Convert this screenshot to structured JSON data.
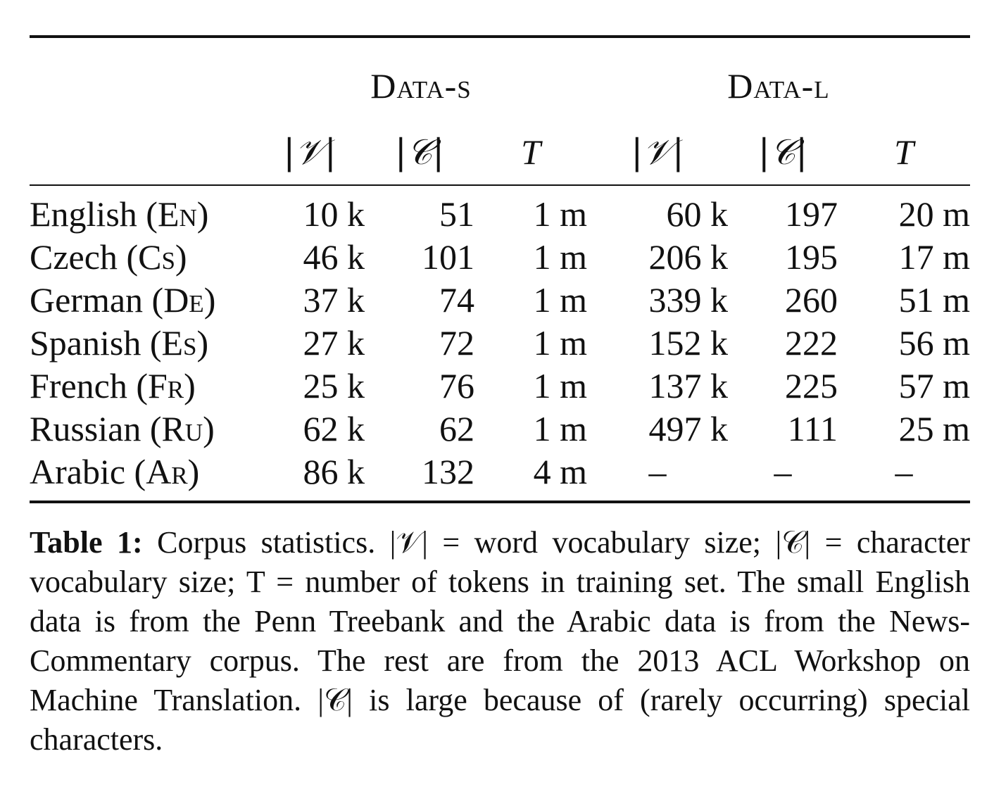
{
  "table": {
    "groups": [
      "Data-s",
      "Data-l"
    ],
    "symbols": [
      "|𝒱|",
      "|𝒞|",
      "T",
      "|𝒱|",
      "|𝒞|",
      "T"
    ],
    "rows": [
      {
        "lang": "English",
        "code": "En",
        "cells": [
          "10 k",
          "51",
          "1 m",
          "60 k",
          "197",
          "20 m"
        ]
      },
      {
        "lang": "Czech",
        "code": "Cs",
        "cells": [
          "46 k",
          "101",
          "1 m",
          "206 k",
          "195",
          "17 m"
        ]
      },
      {
        "lang": "German",
        "code": "De",
        "cells": [
          "37 k",
          "74",
          "1 m",
          "339 k",
          "260",
          "51 m"
        ]
      },
      {
        "lang": "Spanish",
        "code": "Es",
        "cells": [
          "27 k",
          "72",
          "1 m",
          "152 k",
          "222",
          "56 m"
        ]
      },
      {
        "lang": "French",
        "code": "Fr",
        "cells": [
          "25 k",
          "76",
          "1 m",
          "137 k",
          "225",
          "57 m"
        ]
      },
      {
        "lang": "Russian",
        "code": "Ru",
        "cells": [
          "62 k",
          "62",
          "1 m",
          "497 k",
          "111",
          "25 m"
        ]
      },
      {
        "lang": "Arabic",
        "code": "Ar",
        "cells": [
          "86 k",
          "132",
          "4 m",
          "–",
          "–",
          "–"
        ]
      }
    ]
  },
  "caption": {
    "label": "Table 1:",
    "text": "Corpus statistics. |𝒱| = word vocabulary size; |𝒞| = character vocabulary size; T = number of tokens in training set. The small English data is from the Penn Treebank and the Arabic data is from the News-Commentary corpus. The rest are from the 2013 ACL Workshop on Machine Translation. |𝒞| is large because of (rarely occurring) special characters."
  }
}
